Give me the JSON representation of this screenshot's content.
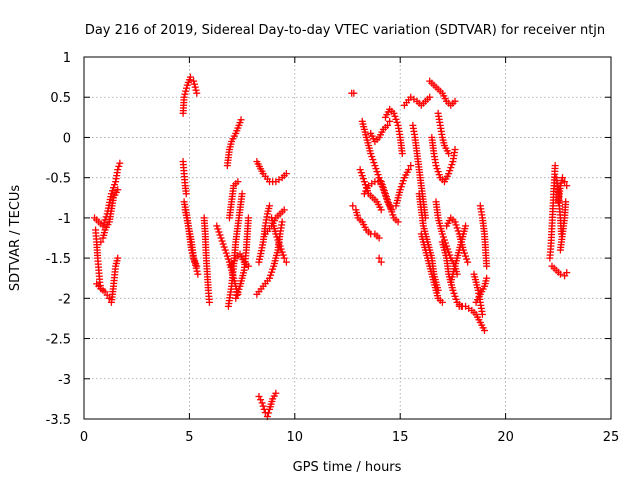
{
  "chart_data": {
    "type": "scatter",
    "title": "Day 216 of 2019, Sidereal Day-to-day VTEC variation (SDTVAR) for receiver ntjn",
    "xlabel": "GPS time / hours",
    "ylabel": "SDTVAR / TECUs",
    "xlim": [
      0,
      25
    ],
    "ylim": [
      -3.5,
      1
    ],
    "xticks": [
      "0",
      "5",
      "10",
      "15",
      "20",
      "25"
    ],
    "yticks": [
      "-3.5",
      "-3",
      "-2.5",
      "-2",
      "-1.5",
      "-1",
      "-0.5",
      "0",
      "0.5",
      "1"
    ],
    "grid": true,
    "marker": "plus",
    "color": "#ff0000",
    "series_tracks": [
      [
        [
          0.5,
          -1.0
        ],
        [
          0.7,
          -1.05
        ],
        [
          0.9,
          -1.1
        ],
        [
          1.1,
          -0.95
        ],
        [
          1.3,
          -0.7
        ],
        [
          1.5,
          -0.55
        ],
        [
          1.6,
          -0.4
        ],
        [
          1.7,
          -0.32
        ]
      ],
      [
        [
          0.55,
          -1.15
        ],
        [
          0.6,
          -1.3
        ],
        [
          0.65,
          -1.5
        ],
        [
          0.7,
          -1.65
        ],
        [
          0.75,
          -1.8
        ],
        [
          0.8,
          -1.88
        ]
      ],
      [
        [
          0.6,
          -1.82
        ],
        [
          0.8,
          -1.88
        ],
        [
          1.0,
          -1.92
        ],
        [
          1.2,
          -2.0
        ],
        [
          1.3,
          -2.05
        ],
        [
          1.4,
          -1.85
        ],
        [
          1.5,
          -1.6
        ],
        [
          1.6,
          -1.5
        ]
      ],
      [
        [
          0.8,
          -1.3
        ],
        [
          0.9,
          -1.25
        ],
        [
          1.0,
          -1.15
        ],
        [
          1.2,
          -1.05
        ],
        [
          1.4,
          -0.75
        ],
        [
          1.6,
          -0.65
        ]
      ],
      [
        [
          4.7,
          -0.3
        ],
        [
          4.75,
          -0.45
        ],
        [
          4.8,
          -0.6
        ],
        [
          4.85,
          -0.7
        ]
      ],
      [
        [
          4.7,
          0.3
        ],
        [
          4.75,
          0.5
        ],
        [
          4.9,
          0.65
        ],
        [
          5.05,
          0.75
        ],
        [
          5.2,
          0.7
        ],
        [
          5.35,
          0.55
        ]
      ],
      [
        [
          4.75,
          -0.8
        ],
        [
          4.9,
          -1.0
        ],
        [
          5.0,
          -1.2
        ],
        [
          5.1,
          -1.4
        ],
        [
          5.25,
          -1.55
        ],
        [
          5.4,
          -1.7
        ]
      ],
      [
        [
          4.8,
          -0.9
        ],
        [
          4.95,
          -1.1
        ],
        [
          5.1,
          -1.3
        ],
        [
          5.2,
          -1.5
        ],
        [
          5.35,
          -1.6
        ]
      ],
      [
        [
          5.7,
          -1.0
        ],
        [
          5.75,
          -1.2
        ],
        [
          5.8,
          -1.5
        ],
        [
          5.85,
          -1.7
        ],
        [
          5.9,
          -1.9
        ],
        [
          5.95,
          -2.05
        ]
      ],
      [
        [
          6.3,
          -1.1
        ],
        [
          6.5,
          -1.25
        ],
        [
          6.7,
          -1.4
        ],
        [
          6.9,
          -1.55
        ],
        [
          7.1,
          -1.75
        ],
        [
          7.3,
          -1.95
        ]
      ],
      [
        [
          6.8,
          -0.35
        ],
        [
          6.9,
          -0.15
        ],
        [
          7.0,
          -0.05
        ],
        [
          7.2,
          0.05
        ],
        [
          7.35,
          0.15
        ],
        [
          7.45,
          0.22
        ]
      ],
      [
        [
          6.85,
          -2.1
        ],
        [
          7.0,
          -1.85
        ],
        [
          7.1,
          -1.6
        ],
        [
          7.2,
          -1.3
        ],
        [
          7.3,
          -1.1
        ],
        [
          7.4,
          -0.9
        ],
        [
          7.5,
          -0.7
        ]
      ],
      [
        [
          6.9,
          -1.0
        ],
        [
          7.0,
          -0.8
        ],
        [
          7.1,
          -0.6
        ],
        [
          7.3,
          -0.55
        ]
      ],
      [
        [
          7.0,
          -1.6
        ],
        [
          7.2,
          -1.5
        ],
        [
          7.4,
          -1.45
        ],
        [
          7.6,
          -1.55
        ],
        [
          7.8,
          -1.6
        ]
      ],
      [
        [
          7.2,
          -2.0
        ],
        [
          7.4,
          -1.85
        ],
        [
          7.6,
          -1.65
        ],
        [
          7.7,
          -1.4
        ],
        [
          7.75,
          -1.2
        ],
        [
          7.8,
          -1.0
        ]
      ],
      [
        [
          8.2,
          -0.3
        ],
        [
          8.5,
          -0.45
        ],
        [
          8.8,
          -0.55
        ],
        [
          9.1,
          -0.55
        ],
        [
          9.4,
          -0.5
        ],
        [
          9.6,
          -0.45
        ]
      ],
      [
        [
          8.2,
          -1.95
        ],
        [
          8.5,
          -1.85
        ],
        [
          8.8,
          -1.75
        ],
        [
          9.0,
          -1.6
        ],
        [
          9.2,
          -1.4
        ],
        [
          9.3,
          -1.2
        ],
        [
          9.4,
          -1.05
        ]
      ],
      [
        [
          8.3,
          -1.55
        ],
        [
          8.5,
          -1.3
        ],
        [
          8.6,
          -1.1
        ],
        [
          8.7,
          -0.95
        ],
        [
          8.8,
          -0.85
        ]
      ],
      [
        [
          8.6,
          -1.2
        ],
        [
          8.9,
          -1.1
        ],
        [
          9.1,
          -1.0
        ],
        [
          9.3,
          -0.95
        ],
        [
          9.5,
          -0.9
        ]
      ],
      [
        [
          8.9,
          -1.0
        ],
        [
          9.1,
          -1.2
        ],
        [
          9.3,
          -1.35
        ],
        [
          9.5,
          -1.5
        ],
        [
          9.6,
          -1.55
        ]
      ],
      [
        [
          8.3,
          -3.22
        ],
        [
          8.45,
          -3.3
        ],
        [
          8.6,
          -3.42
        ],
        [
          8.7,
          -3.47
        ],
        [
          8.8,
          -3.38
        ],
        [
          8.95,
          -3.25
        ],
        [
          9.1,
          -3.18
        ]
      ],
      [
        [
          12.7,
          0.55
        ],
        [
          12.8,
          0.55
        ]
      ],
      [
        [
          12.75,
          -0.85
        ],
        [
          12.9,
          -0.9
        ],
        [
          13.0,
          -1.0
        ],
        [
          13.2,
          -1.05
        ],
        [
          13.4,
          -1.15
        ],
        [
          13.6,
          -1.2
        ],
        [
          13.8,
          -1.2
        ],
        [
          14.0,
          -1.25
        ]
      ],
      [
        [
          13.2,
          0.2
        ],
        [
          13.4,
          0.0
        ],
        [
          13.6,
          -0.2
        ],
        [
          13.8,
          -0.35
        ],
        [
          14.0,
          -0.5
        ],
        [
          14.2,
          -0.65
        ],
        [
          14.4,
          -0.8
        ],
        [
          14.6,
          -0.9
        ]
      ],
      [
        [
          13.1,
          -0.4
        ],
        [
          13.3,
          -0.55
        ],
        [
          13.5,
          -0.7
        ],
        [
          13.7,
          -0.75
        ],
        [
          13.9,
          -0.8
        ],
        [
          14.1,
          -0.9
        ]
      ],
      [
        [
          13.3,
          -0.7
        ],
        [
          13.5,
          -0.6
        ],
        [
          13.8,
          -0.55
        ],
        [
          14.1,
          -0.55
        ],
        [
          14.3,
          -0.7
        ],
        [
          14.5,
          -0.85
        ],
        [
          14.7,
          -1.0
        ],
        [
          14.9,
          -1.05
        ]
      ],
      [
        [
          13.6,
          0.05
        ],
        [
          13.8,
          -0.05
        ],
        [
          14.0,
          0.0
        ],
        [
          14.2,
          0.1
        ],
        [
          14.4,
          0.15
        ],
        [
          14.5,
          0.2
        ]
      ],
      [
        [
          14.0,
          -1.5
        ],
        [
          14.1,
          -1.55
        ]
      ],
      [
        [
          14.3,
          0.25
        ],
        [
          14.5,
          0.35
        ],
        [
          14.7,
          0.3
        ],
        [
          14.9,
          0.15
        ],
        [
          15.0,
          0.0
        ],
        [
          15.1,
          -0.2
        ]
      ],
      [
        [
          14.8,
          -0.85
        ],
        [
          15.0,
          -0.65
        ],
        [
          15.2,
          -0.5
        ],
        [
          15.4,
          -0.4
        ],
        [
          15.5,
          -0.35
        ]
      ],
      [
        [
          15.2,
          0.4
        ],
        [
          15.5,
          0.5
        ],
        [
          15.8,
          0.45
        ],
        [
          16.0,
          0.4
        ],
        [
          16.2,
          0.45
        ],
        [
          16.4,
          0.5
        ]
      ],
      [
        [
          15.6,
          0.15
        ],
        [
          15.7,
          0.0
        ],
        [
          15.8,
          -0.2
        ],
        [
          15.9,
          -0.4
        ],
        [
          16.0,
          -0.6
        ],
        [
          16.1,
          -0.8
        ],
        [
          16.2,
          -1.0
        ]
      ],
      [
        [
          16.0,
          -1.2
        ],
        [
          16.2,
          -1.4
        ],
        [
          16.4,
          -1.6
        ],
        [
          16.6,
          -1.8
        ],
        [
          16.8,
          -2.0
        ],
        [
          17.0,
          -2.05
        ]
      ],
      [
        [
          15.9,
          -0.7
        ],
        [
          16.0,
          -0.9
        ],
        [
          16.1,
          -1.1
        ],
        [
          16.3,
          -1.3
        ],
        [
          16.5,
          -1.5
        ],
        [
          16.6,
          -1.7
        ],
        [
          16.8,
          -1.9
        ]
      ],
      [
        [
          16.4,
          0.7
        ],
        [
          16.6,
          0.65
        ],
        [
          16.8,
          0.6
        ],
        [
          17.0,
          0.55
        ],
        [
          17.2,
          0.45
        ],
        [
          17.4,
          0.4
        ],
        [
          17.6,
          0.45
        ]
      ],
      [
        [
          16.5,
          0.0
        ],
        [
          16.6,
          -0.2
        ],
        [
          16.7,
          -0.35
        ],
        [
          16.9,
          -0.5
        ],
        [
          17.1,
          -0.55
        ],
        [
          17.3,
          -0.45
        ],
        [
          17.5,
          -0.3
        ],
        [
          17.6,
          -0.15
        ]
      ],
      [
        [
          16.8,
          0.3
        ],
        [
          16.9,
          0.15
        ],
        [
          17.0,
          0.0
        ],
        [
          17.1,
          -0.1
        ],
        [
          17.3,
          -0.2
        ]
      ],
      [
        [
          16.7,
          -0.8
        ],
        [
          16.8,
          -1.0
        ],
        [
          17.0,
          -1.2
        ],
        [
          17.2,
          -1.35
        ],
        [
          17.4,
          -1.5
        ],
        [
          17.6,
          -1.6
        ],
        [
          17.7,
          -1.7
        ]
      ],
      [
        [
          17.0,
          -1.3
        ],
        [
          17.2,
          -1.5
        ],
        [
          17.3,
          -1.7
        ],
        [
          17.5,
          -1.9
        ],
        [
          17.7,
          -2.05
        ],
        [
          17.9,
          -2.1
        ]
      ],
      [
        [
          17.2,
          -1.1
        ],
        [
          17.4,
          -1.0
        ],
        [
          17.6,
          -1.05
        ],
        [
          17.8,
          -1.2
        ],
        [
          18.0,
          -1.4
        ],
        [
          18.2,
          -1.55
        ]
      ],
      [
        [
          17.4,
          -1.8
        ],
        [
          17.6,
          -1.6
        ],
        [
          17.8,
          -1.4
        ],
        [
          18.0,
          -1.2
        ],
        [
          18.1,
          -1.1
        ]
      ],
      [
        [
          17.8,
          -2.1
        ],
        [
          18.1,
          -2.1
        ],
        [
          18.4,
          -2.15
        ],
        [
          18.6,
          -2.2
        ],
        [
          18.8,
          -2.3
        ],
        [
          19.0,
          -2.4
        ]
      ],
      [
        [
          18.5,
          -1.7
        ],
        [
          18.6,
          -1.8
        ],
        [
          18.7,
          -1.9
        ],
        [
          18.8,
          -2.05
        ],
        [
          18.9,
          -2.2
        ]
      ],
      [
        [
          18.8,
          -0.85
        ],
        [
          18.9,
          -1.0
        ],
        [
          19.0,
          -1.2
        ],
        [
          19.05,
          -1.4
        ],
        [
          19.1,
          -1.6
        ]
      ],
      [
        [
          18.6,
          -2.05
        ],
        [
          18.8,
          -1.95
        ],
        [
          19.0,
          -1.85
        ],
        [
          19.1,
          -1.75
        ]
      ],
      [
        [
          22.1,
          -1.5
        ],
        [
          22.15,
          -1.35
        ],
        [
          22.2,
          -1.1
        ],
        [
          22.25,
          -0.85
        ],
        [
          22.3,
          -0.6
        ],
        [
          22.35,
          -0.35
        ]
      ],
      [
        [
          22.4,
          -0.5
        ],
        [
          22.5,
          -0.65
        ],
        [
          22.55,
          -0.85
        ],
        [
          22.6,
          -1.0
        ],
        [
          22.65,
          -1.2
        ]
      ],
      [
        [
          22.5,
          -0.8
        ],
        [
          22.6,
          -0.6
        ],
        [
          22.7,
          -0.5
        ],
        [
          22.8,
          -0.55
        ],
        [
          22.9,
          -0.6
        ]
      ],
      [
        [
          22.2,
          -1.6
        ],
        [
          22.4,
          -1.65
        ],
        [
          22.6,
          -1.7
        ],
        [
          22.8,
          -1.72
        ],
        [
          22.9,
          -1.68
        ]
      ],
      [
        [
          22.6,
          -1.4
        ],
        [
          22.7,
          -1.2
        ],
        [
          22.8,
          -1.0
        ],
        [
          22.85,
          -0.8
        ]
      ]
    ]
  }
}
